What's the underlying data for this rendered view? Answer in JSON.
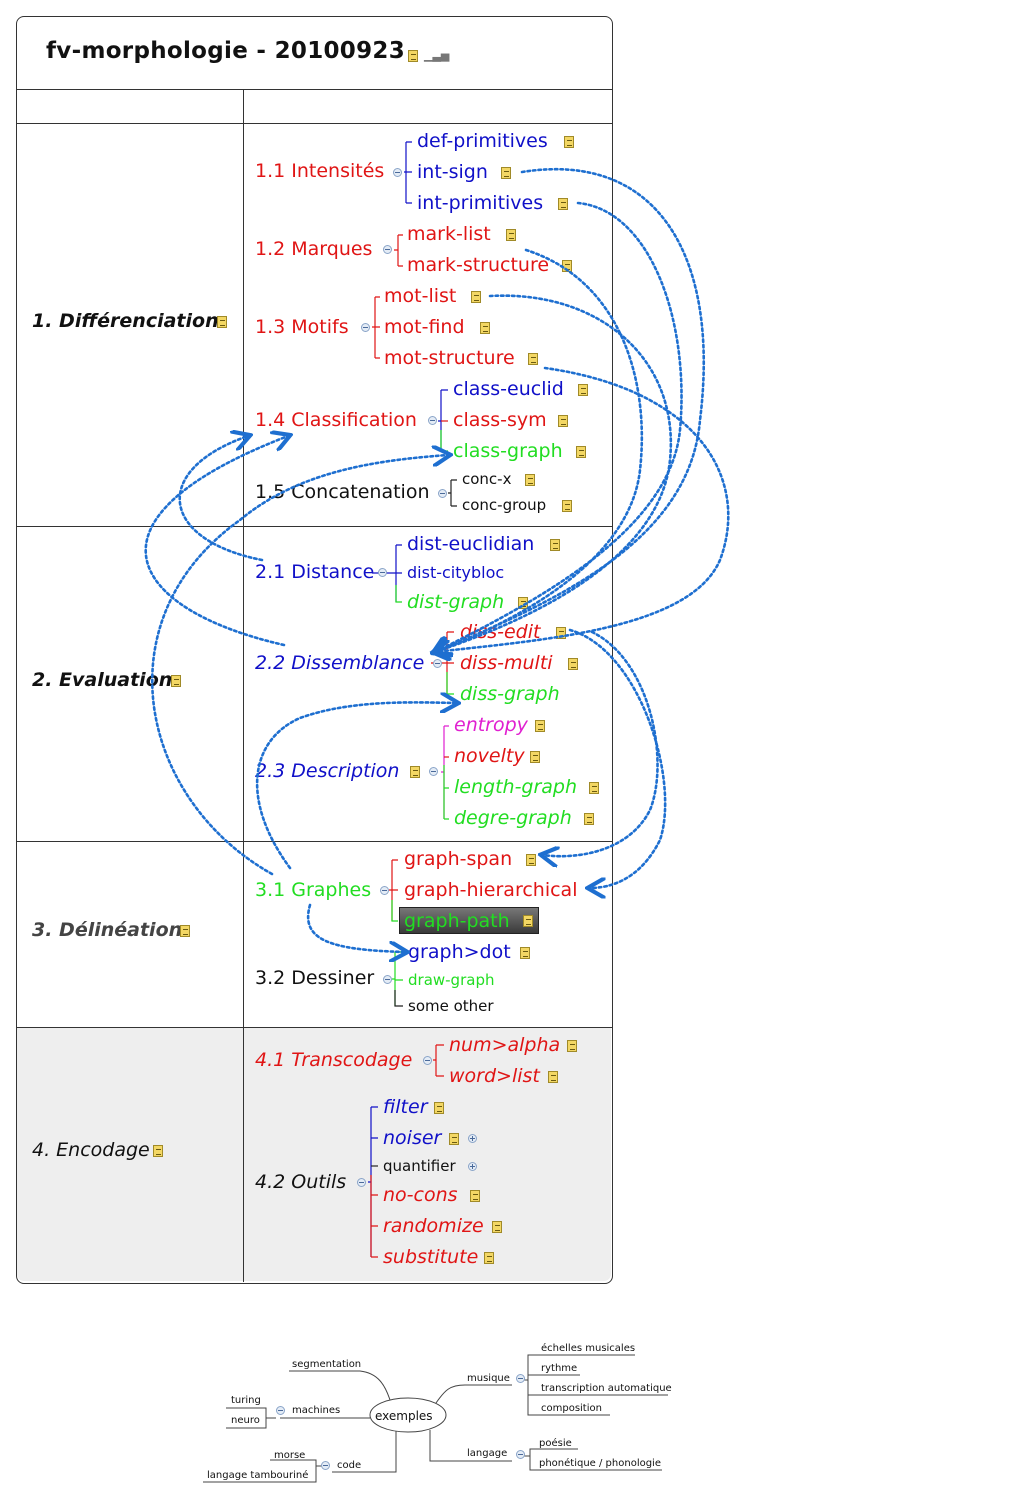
{
  "title": "fv-morphologie - 20100923",
  "icons": {
    "note": "note-icon",
    "collapse": "collapse-circle-icon",
    "expand": "expand-circle-icon",
    "chart": "chart-icon"
  },
  "colors": {
    "red": "#e01515",
    "blue": "#1010c8",
    "green": "#22dd22",
    "magenta": "#e020d0",
    "connector": "#1e6fd0"
  },
  "sections": [
    {
      "label": "1. Différenciation",
      "subs": [
        {
          "label": "1.1 Intensités",
          "leaves": [
            "def-primitives",
            "int-sign",
            "int-primitives"
          ]
        },
        {
          "label": "1.2 Marques",
          "leaves": [
            "mark-list",
            "mark-structure"
          ]
        },
        {
          "label": "1.3 Motifs",
          "leaves": [
            "mot-list",
            "mot-find",
            "mot-structure"
          ]
        },
        {
          "label": "1.4 Classification",
          "leaves": [
            "class-euclid",
            "class-sym",
            "class-graph"
          ]
        },
        {
          "label": "1.5 Concatenation",
          "leaves": [
            "conc-x",
            "conc-group"
          ]
        }
      ]
    },
    {
      "label": "2. Evaluation",
      "subs": [
        {
          "label": "2.1 Distance",
          "leaves": [
            "dist-euclidian",
            "dist-citybloc",
            "dist-graph"
          ]
        },
        {
          "label": "2.2 Dissemblance",
          "leaves": [
            "diss-edit",
            "diss-multi",
            "diss-graph"
          ]
        },
        {
          "label": "2.3 Description",
          "leaves": [
            "entropy",
            "novelty",
            "length-graph",
            "degre-graph"
          ]
        }
      ]
    },
    {
      "label": "3. Délinéation",
      "subs": [
        {
          "label": "3.1 Graphes",
          "leaves": [
            "graph-span",
            "graph-hierarchical",
            "graph-path"
          ]
        },
        {
          "label": "3.2 Dessiner",
          "leaves": [
            "graph>dot",
            "draw-graph",
            "some other"
          ]
        }
      ]
    },
    {
      "label": "4. Encodage",
      "subs": [
        {
          "label": "4.1 Transcodage",
          "leaves": [
            "num>alpha",
            "word>list"
          ]
        },
        {
          "label": "4.2 Outils",
          "leaves": [
            "filter",
            "noiser",
            "quantifier",
            "no-cons",
            "randomize",
            "substitute"
          ]
        }
      ]
    }
  ],
  "mindmap": {
    "center": "exemples",
    "left": [
      {
        "label": "segmentation",
        "children": []
      },
      {
        "label": "machines",
        "children": [
          "turing",
          "neuro"
        ]
      },
      {
        "label": "code",
        "children": [
          "morse",
          "langage tambouriné"
        ]
      }
    ],
    "right": [
      {
        "label": "musique",
        "children": [
          "échelles musicales",
          "rythme",
          "transcription automatique",
          "composition"
        ]
      },
      {
        "label": "langage",
        "children": [
          "poésie",
          "phonétique / phonologie"
        ]
      }
    ]
  }
}
